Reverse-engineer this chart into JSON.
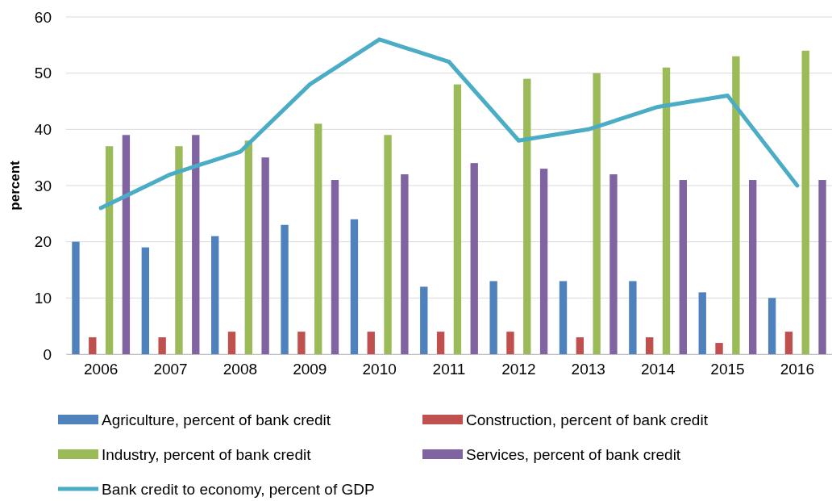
{
  "chart_data": {
    "type": "bar",
    "ylabel": "percent",
    "categories": [
      "2006",
      "2007",
      "2008",
      "2009",
      "2010",
      "2011",
      "2012",
      "2013",
      "2014",
      "2015",
      "2016"
    ],
    "series": [
      {
        "name": "Agriculture, percent of bank credit",
        "color": "#4f81bd",
        "values": [
          20,
          19,
          21,
          23,
          24,
          12,
          13,
          13,
          13,
          11,
          10
        ]
      },
      {
        "name": "Construction, percent of bank credit",
        "color": "#c0504d",
        "values": [
          3,
          3,
          4,
          4,
          4,
          4,
          4,
          3,
          3,
          2,
          4
        ]
      },
      {
        "name": "Industry, percent of bank credit",
        "color": "#9bbb59",
        "values": [
          37,
          37,
          38,
          41,
          39,
          48,
          49,
          50,
          51,
          53,
          54
        ]
      },
      {
        "name": "Services, percent of bank credit",
        "color": "#8064a2",
        "values": [
          39,
          39,
          35,
          31,
          32,
          34,
          33,
          32,
          31,
          31,
          31
        ]
      },
      {
        "name": "Bank credit to economy, percent of GDP",
        "type": "line",
        "color": "#4bacc6",
        "values": [
          26,
          32,
          36,
          48,
          56,
          52,
          38,
          40,
          44,
          46,
          30
        ]
      }
    ],
    "ylim": [
      0,
      60
    ],
    "yticks": [
      0,
      10,
      20,
      30,
      40,
      50,
      60
    ],
    "grid": "y",
    "legend": "bottom"
  }
}
